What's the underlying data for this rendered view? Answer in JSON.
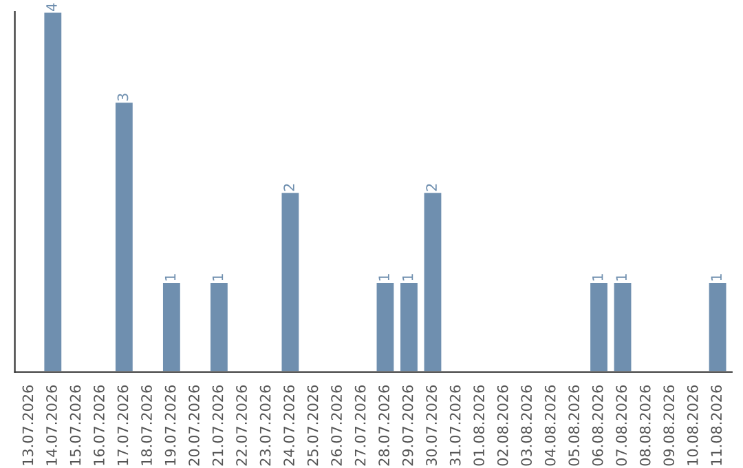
{
  "chart_data": {
    "type": "bar",
    "color": "#6f8faf",
    "categories": [
      "13.07.2026",
      "14.07.2026",
      "15.07.2026",
      "16.07.2026",
      "17.07.2026",
      "18.07.2026",
      "19.07.2026",
      "20.07.2026",
      "21.07.2026",
      "22.07.2026",
      "23.07.2026",
      "24.07.2026",
      "25.07.2026",
      "26.07.2026",
      "27.07.2026",
      "28.07.2026",
      "29.07.2026",
      "30.07.2026",
      "31.07.2026",
      "01.08.2026",
      "02.08.2026",
      "03.08.2026",
      "04.08.2026",
      "05.08.2026",
      "06.08.2026",
      "07.08.2026",
      "08.08.2026",
      "09.08.2026",
      "10.08.2026",
      "11.08.2026"
    ],
    "values": [
      null,
      4,
      null,
      null,
      3,
      null,
      1,
      null,
      1,
      null,
      null,
      2,
      null,
      null,
      null,
      1,
      1,
      2,
      null,
      null,
      null,
      null,
      null,
      null,
      1,
      1,
      null,
      null,
      null,
      1
    ],
    "value_labels": [
      null,
      "4",
      null,
      null,
      "3",
      null,
      "1",
      null,
      "1",
      null,
      null,
      "2",
      null,
      null,
      null,
      "1",
      "1",
      "2",
      null,
      null,
      null,
      null,
      null,
      null,
      "1",
      "1",
      null,
      null,
      null,
      "1"
    ],
    "grid": false,
    "tick_labels": "x"
  }
}
